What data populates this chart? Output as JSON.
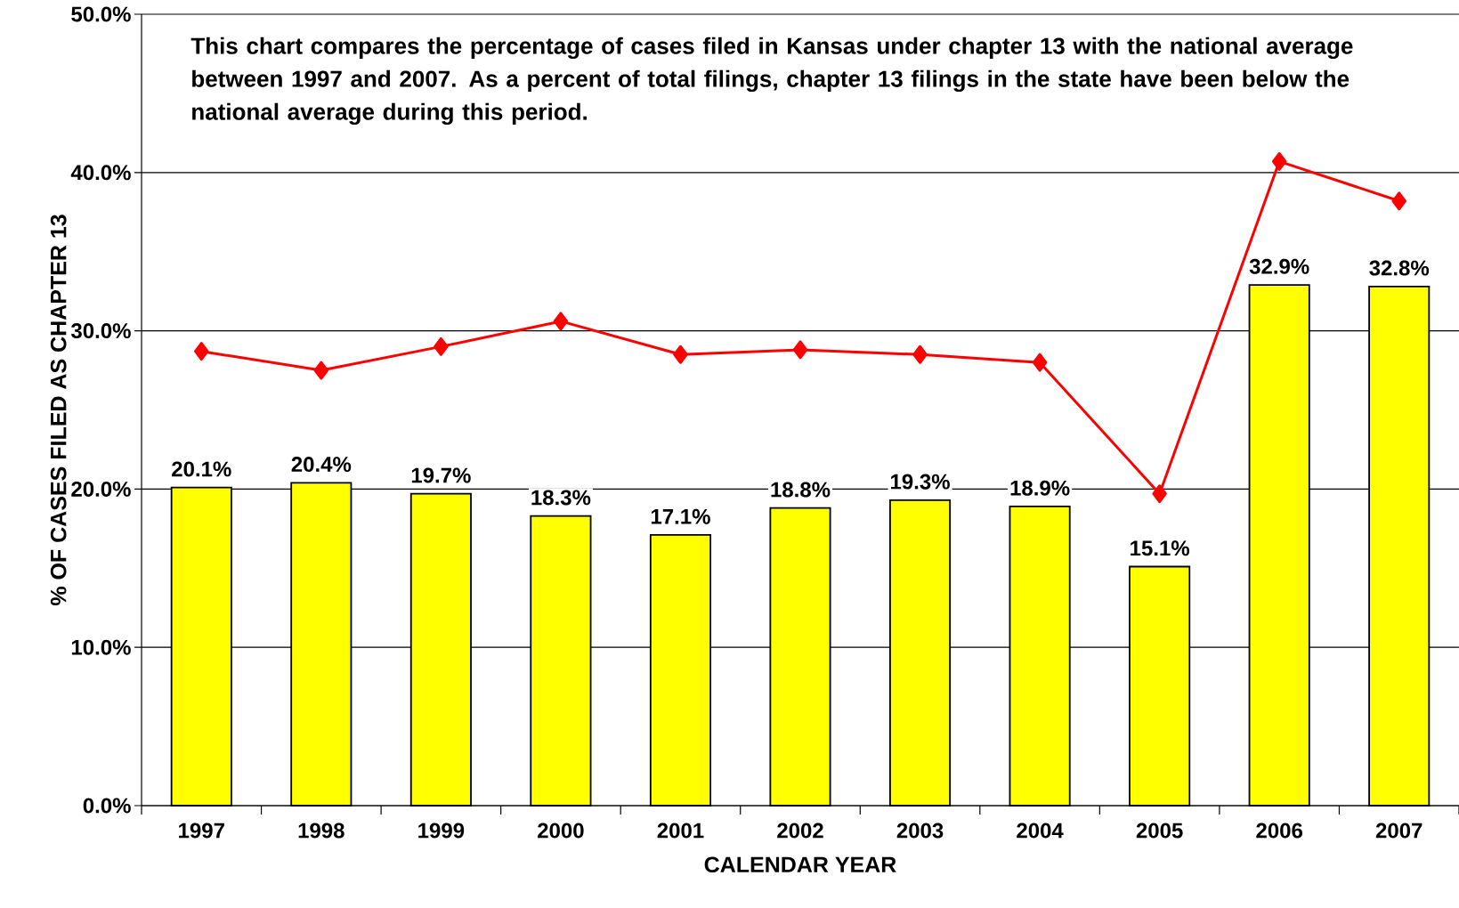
{
  "chart_data": {
    "type": "bar",
    "xlabel": "CALENDAR YEAR",
    "ylabel": "% OF CASES FILED AS CHAPTER 13",
    "categories": [
      "1997",
      "1998",
      "1999",
      "2000",
      "2001",
      "2002",
      "2003",
      "2004",
      "2005",
      "2006",
      "2007"
    ],
    "series": [
      {
        "color": "#ffff00",
        "values": [
          20.1,
          20.4,
          19.7,
          18.3,
          17.1,
          18.8,
          19.3,
          18.9,
          15.1,
          32.9,
          32.8
        ],
        "value_labels": [
          "20.1%",
          "20.4%",
          "19.7%",
          "18.3%",
          "17.1%",
          "18.8%",
          "19.3%",
          "18.9%",
          "15.1%",
          "32.9%",
          "32.8%"
        ]
      },
      {
        "type": "line",
        "color": "#ff0000",
        "marker": "diamond",
        "values": [
          28.7,
          27.5,
          29.0,
          30.6,
          28.5,
          28.8,
          28.5,
          28.0,
          19.7,
          40.7,
          38.2
        ]
      }
    ],
    "ylim": [
      0,
      50
    ],
    "yticks": [
      {
        "value": 0,
        "label": "0.0%"
      },
      {
        "value": 10,
        "label": "10.0%"
      },
      {
        "value": 20,
        "label": "20.0%"
      },
      {
        "value": 30,
        "label": "30.0%"
      },
      {
        "value": 40,
        "label": "40.0%"
      },
      {
        "value": 50,
        "label": "50.0%"
      }
    ],
    "grid": "y",
    "annotations": [
      "This chart compares the percentage of cases filed in Kansas under chapter 13 with the national average between 1997 and 2007.  As a percent of total filings, chapter 13 filings in the state have been below the national average during this period."
    ]
  }
}
